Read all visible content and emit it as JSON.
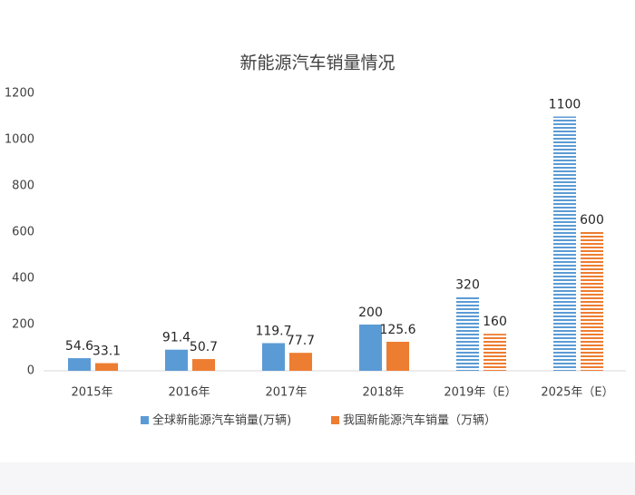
{
  "chart_data": {
    "type": "bar",
    "title": "新能源汽车销量情况",
    "categories": [
      "2015年",
      "2016年",
      "2017年",
      "2018年",
      "2019年（E）",
      "2025年（E）"
    ],
    "series": [
      {
        "name": "全球新能源汽车销量(万辆)",
        "color": "#5b9bd5",
        "values": [
          54.6,
          91.4,
          119.7,
          200,
          320,
          1100
        ]
      },
      {
        "name": "我国新能源汽车销量（万辆）",
        "color": "#ed7d31",
        "values": [
          33.1,
          50.7,
          77.7,
          125.6,
          160,
          600
        ]
      }
    ],
    "hatched": [
      false,
      false,
      false,
      false,
      true,
      true
    ],
    "ylim": [
      0,
      1200
    ],
    "yticks": [
      0,
      200,
      400,
      600,
      800,
      1000,
      1200
    ],
    "grid": false,
    "legend": "bottom"
  }
}
